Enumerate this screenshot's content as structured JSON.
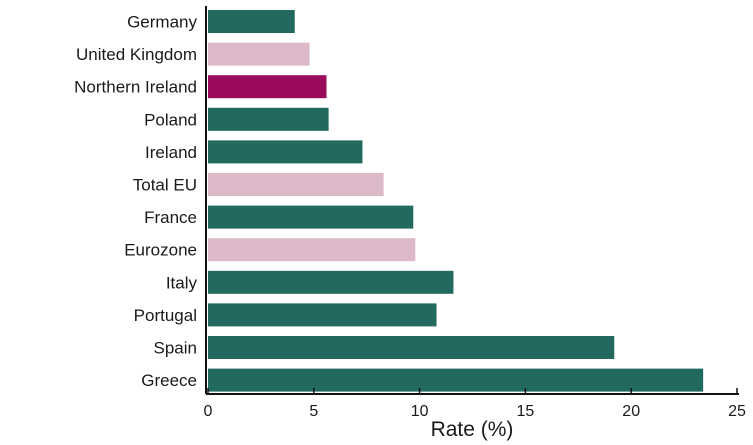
{
  "chart_data": {
    "type": "bar",
    "orientation": "horizontal",
    "categories": [
      "Germany",
      "United Kingdom",
      "Northern Ireland",
      "Poland",
      "Ireland",
      "Total EU",
      "France",
      "Eurozone",
      "Italy",
      "Portugal",
      "Spain",
      "Greece"
    ],
    "values": [
      4.1,
      4.8,
      5.6,
      5.7,
      7.3,
      8.3,
      9.7,
      9.8,
      11.6,
      10.8,
      19.2,
      23.4
    ],
    "bar_colors": [
      "#22695f",
      "#dbb9c8",
      "#9a0c5b",
      "#22695f",
      "#22695f",
      "#dbb9c8",
      "#22695f",
      "#dbb9c8",
      "#22695f",
      "#22695f",
      "#22695f",
      "#22695f"
    ],
    "xlabel": "Rate (%)",
    "ylabel": "",
    "title": "",
    "xlim": [
      0,
      25
    ],
    "xticks": [
      0,
      5,
      10,
      15,
      20,
      25
    ],
    "grid": false,
    "legend": "none"
  }
}
